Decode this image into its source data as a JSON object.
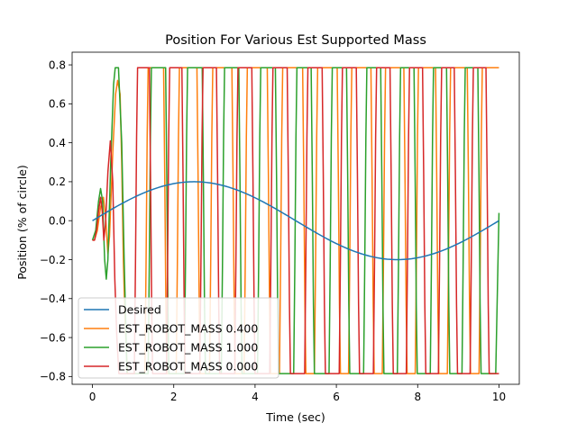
{
  "chart_data": {
    "type": "line",
    "title": "Position For Various Est Supported Mass",
    "xlabel": "Time (sec)",
    "ylabel": "Position (% of circle)",
    "xlim": [
      -0.5,
      10.5
    ],
    "ylim": [
      -0.84,
      0.865
    ],
    "xticks": [
      0,
      2,
      4,
      6,
      8,
      10
    ],
    "yticks": [
      -0.8,
      -0.6,
      -0.4,
      -0.2,
      0.0,
      0.2,
      0.4,
      0.6,
      0.8
    ],
    "xtick_labels": [
      "0",
      "2",
      "4",
      "6",
      "8",
      "10"
    ],
    "ytick_labels": [
      "−0.8",
      "−0.6",
      "−0.4",
      "−0.2",
      "0.0",
      "0.2",
      "0.4",
      "0.6",
      "0.8"
    ],
    "grid": false,
    "legend_position": "lower-left",
    "desired": {
      "amplitude": 0.2,
      "period": 10,
      "x_start": 0,
      "x_end": 10
    },
    "series": [
      {
        "name": "Desired",
        "color": "#1f77b4",
        "shape": "sine"
      },
      {
        "name": "EST_ROBOT_MASS 0.400",
        "color": "#ff7f0e",
        "shape": "oscillation",
        "saturation": 0.785,
        "initial_value": -0.1,
        "transient": [
          [
            0,
            -0.1
          ],
          [
            0.05,
            -0.1
          ],
          [
            0.12,
            -0.05
          ],
          [
            0.2,
            0.07
          ],
          [
            0.27,
            0.12
          ],
          [
            0.33,
            0.0
          ],
          [
            0.38,
            -0.17
          ],
          [
            0.42,
            -0.08
          ],
          [
            0.5,
            0.35
          ],
          [
            0.57,
            0.65
          ],
          [
            0.62,
            0.72
          ],
          [
            0.68,
            0.65
          ],
          [
            0.72,
            0.3
          ],
          [
            0.76,
            -0.2
          ],
          [
            0.8,
            -0.5
          ],
          [
            0.86,
            -0.785
          ]
        ],
        "rising_edges": [
          1.29,
          2.06,
          2.88,
          3.73,
          4.6,
          5.46,
          6.3,
          7.13,
          7.94,
          8.73,
          9.51
        ],
        "falling_edges": [
          1.75,
          2.57,
          3.43,
          4.3,
          5.17,
          6.02,
          6.85,
          7.66,
          8.44,
          9.22
        ],
        "final_value": 0.785
      },
      {
        "name": "EST_ROBOT_MASS 1.000",
        "color": "#2ca02c",
        "shape": "oscillation",
        "saturation": 0.785,
        "initial_value": -0.1,
        "transient": [
          [
            0,
            -0.1
          ],
          [
            0.08,
            -0.05
          ],
          [
            0.15,
            0.1
          ],
          [
            0.2,
            0.165
          ],
          [
            0.25,
            0.1
          ],
          [
            0.3,
            -0.2
          ],
          [
            0.34,
            -0.3
          ],
          [
            0.38,
            -0.2
          ],
          [
            0.45,
            0.3
          ],
          [
            0.52,
            0.7
          ],
          [
            0.56,
            0.785
          ],
          [
            0.64,
            0.785
          ],
          [
            0.72,
            0.4
          ],
          [
            0.78,
            -0.2
          ],
          [
            0.85,
            -0.785
          ]
        ],
        "rising_edges": [
          1.37,
          2.26,
          3.17,
          4.06,
          4.95,
          5.82,
          6.67,
          7.5,
          8.31,
          9.09
        ],
        "falling_edges": [
          1.8,
          2.7,
          3.6,
          4.5,
          5.38,
          6.25,
          7.09,
          7.91,
          8.71,
          9.48
        ],
        "final_value": 0.04
      },
      {
        "name": "EST_ROBOT_MASS 0.000",
        "color": "#d62728",
        "shape": "oscillation",
        "saturation": 0.785,
        "initial_value": -0.1,
        "transient": [
          [
            0,
            -0.1
          ],
          [
            0.05,
            -0.1
          ],
          [
            0.1,
            -0.05
          ],
          [
            0.15,
            0.05
          ],
          [
            0.2,
            0.12
          ],
          [
            0.24,
            0.05
          ],
          [
            0.28,
            -0.1
          ],
          [
            0.32,
            -0.02
          ],
          [
            0.38,
            0.25
          ],
          [
            0.44,
            0.41
          ],
          [
            0.5,
            0.2
          ],
          [
            0.55,
            -0.3
          ],
          [
            0.6,
            -0.6
          ],
          [
            0.65,
            -0.785
          ]
        ],
        "rising_edges": [
          1.03,
          1.82,
          2.64,
          3.5,
          4.36,
          5.22,
          6.07,
          6.91,
          7.72,
          8.51,
          9.29
        ],
        "falling_edges": [
          1.4,
          2.2,
          3.05,
          3.92,
          4.79,
          5.65,
          6.49,
          7.32,
          8.12,
          8.9,
          9.68
        ],
        "final_value": -0.785
      }
    ]
  }
}
